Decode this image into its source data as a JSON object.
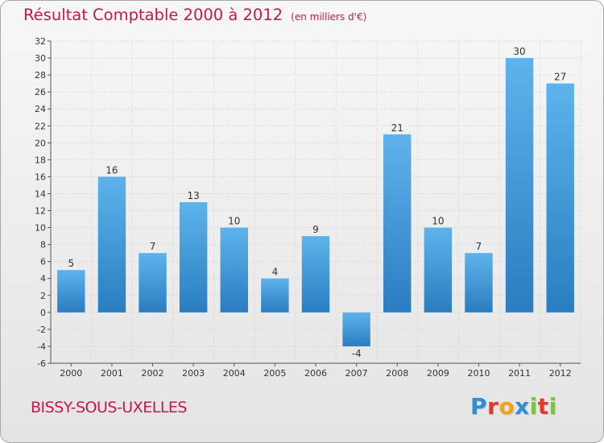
{
  "header": {
    "title": "Résultat Comptable 2000 à 2012",
    "subtitle": "(en milliers d'€)"
  },
  "footer": {
    "commune": "BISSY-SOUS-UXELLES",
    "logo_letters": [
      "P",
      "r",
      "o",
      "x",
      "i",
      "t",
      "i"
    ],
    "logo_colors": [
      "#2e8fd6",
      "#e23a2a",
      "#f2a31b",
      "#2e8fd6",
      "#7cc242",
      "#e23a2a",
      "#7cc242"
    ]
  },
  "colors": {
    "bar_top": "#5eb3ec",
    "bar_bottom": "#2a7dc0",
    "grid": "#cfcfcf",
    "title": "#c8174f"
  },
  "chart_data": {
    "type": "bar",
    "title": "Résultat Comptable 2000 à 2012",
    "subtitle": "(en milliers d'€)",
    "xlabel": "",
    "ylabel": "",
    "categories": [
      "2000",
      "2001",
      "2002",
      "2003",
      "2004",
      "2005",
      "2006",
      "2007",
      "2008",
      "2009",
      "2010",
      "2011",
      "2012"
    ],
    "values": [
      5,
      16,
      7,
      13,
      10,
      4,
      9,
      -4,
      21,
      10,
      7,
      30,
      27
    ],
    "ylim": [
      -6,
      32
    ],
    "yticks": [
      -6,
      -4,
      -2,
      0,
      2,
      4,
      6,
      8,
      10,
      12,
      14,
      16,
      18,
      20,
      22,
      24,
      26,
      28,
      30,
      32
    ],
    "grid": true,
    "legend": "none"
  }
}
